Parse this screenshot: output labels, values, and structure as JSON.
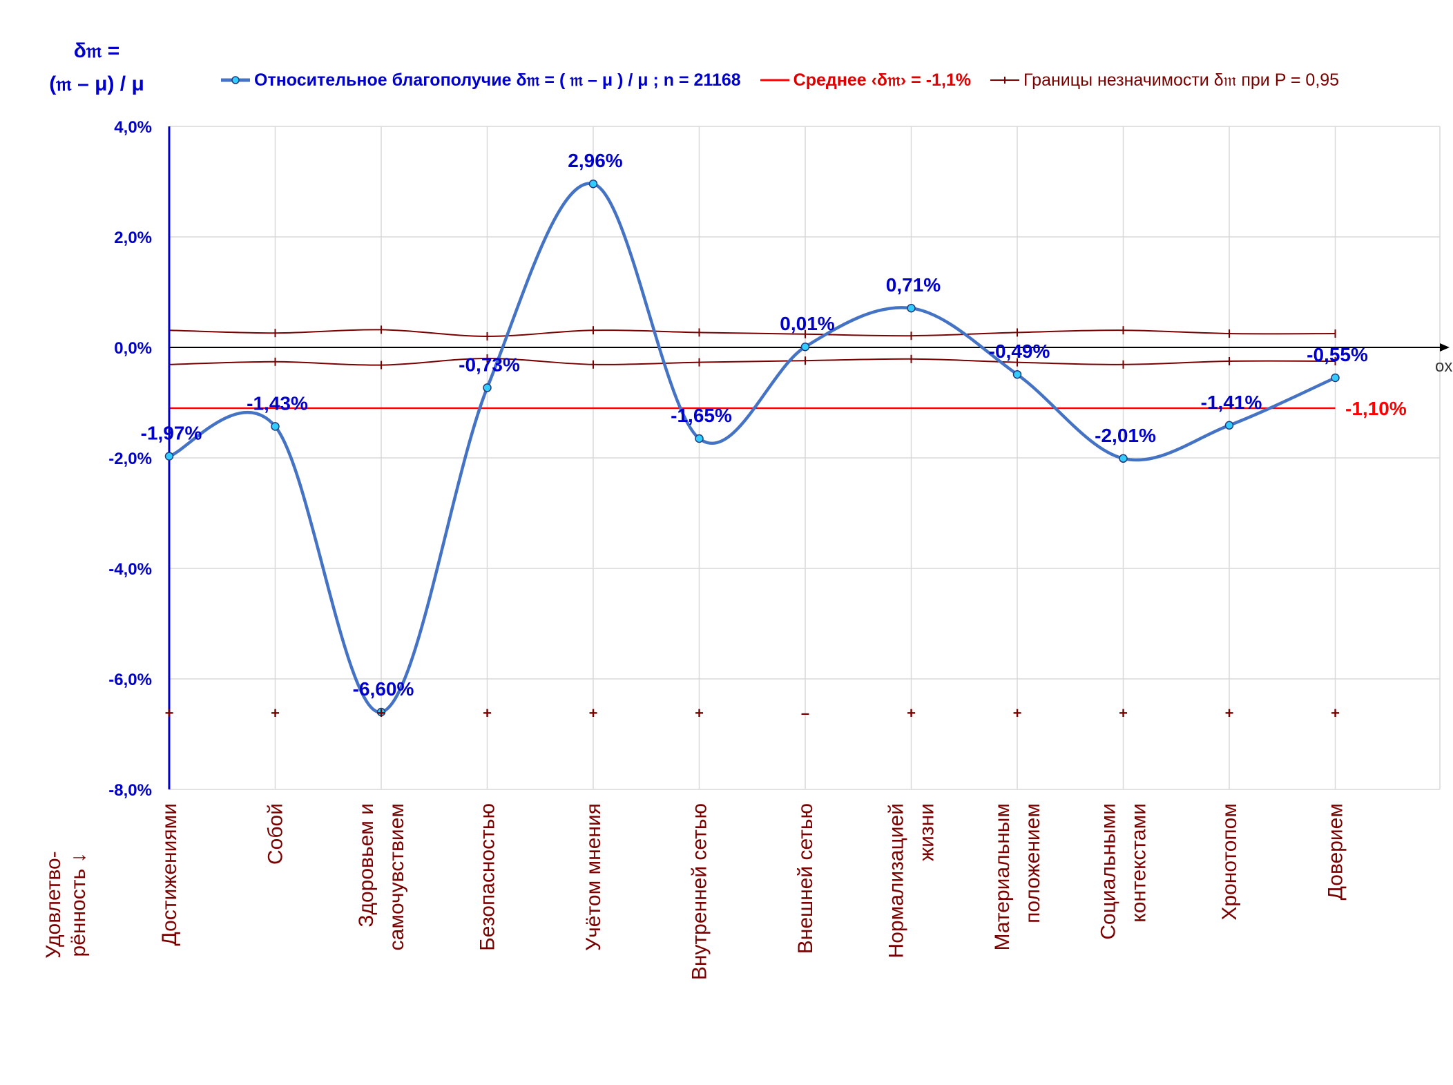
{
  "y_title_line1": "δ𝔪 =",
  "y_title_line2": "(𝔪 – μ) / μ",
  "satisfaction_label": "Удовлетво-рённость ↓",
  "legend": {
    "main": "Относительное благополучие δ𝔪 = ( 𝔪 – μ ) / μ ; n = 21168",
    "mean": "Среднее ‹δ𝔪› = -1,1%",
    "bounds": "Границы незначимости δ𝔪 при P = 0,95"
  },
  "x_axis_name": "ox",
  "mean_label": "-1,10%",
  "colors": {
    "main_series": "#4472c4",
    "marker_fill": "#33ccff",
    "data_label": "#0000cc",
    "mean_line": "#ff0000",
    "bounds": "#7a0000",
    "grid": "#d9d9d9",
    "category_label": "#7a0000"
  },
  "chart_data": {
    "type": "line",
    "categories": [
      [
        "Достижениями"
      ],
      [
        "Собой"
      ],
      [
        "Здоровьем и",
        "самочувствием"
      ],
      [
        "Безопасностью"
      ],
      [
        "Учётом мнения"
      ],
      [
        "Внутренней сетью"
      ],
      [
        "Внешней сетью"
      ],
      [
        "Нормализацией",
        "жизни"
      ],
      [
        "Материальным",
        "положением"
      ],
      [
        "Социальными",
        "контекстами"
      ],
      [
        "Хронотопом"
      ],
      [
        "Доверием"
      ]
    ],
    "series": [
      {
        "name": "Относительное благополучие δ𝔪 = ( 𝔪 – μ ) / μ ; n = 21168",
        "values": [
          -1.97,
          -1.43,
          -6.6,
          -0.73,
          2.96,
          -1.65,
          0.01,
          0.71,
          -0.49,
          -2.01,
          -1.41,
          -0.55
        ],
        "labels": [
          "-1,97%",
          "-1,43%",
          "-6,60%",
          "-0,73%",
          "2,96%",
          "-1,65%",
          "0,01%",
          "0,71%",
          "-0,49%",
          "-2,01%",
          "-1,41%",
          "-0,55%"
        ]
      },
      {
        "name": "Среднее ‹δ𝔪› = -1,1%",
        "value": -1.1
      },
      {
        "name": "Границы незначимости δ𝔪 при P = 0,95",
        "upper": [
          0.31,
          0.26,
          0.32,
          0.2,
          0.31,
          0.27,
          0.24,
          0.21,
          0.27,
          0.31,
          0.25,
          0.25
        ],
        "lower": [
          -0.31,
          -0.26,
          -0.32,
          -0.2,
          -0.31,
          -0.27,
          -0.24,
          -0.21,
          -0.27,
          -0.31,
          -0.25,
          -0.25
        ]
      }
    ],
    "significance_signs": [
      "+",
      "+",
      "+",
      "+",
      "+",
      "+",
      "–",
      "+",
      "+",
      "+",
      "+",
      "+"
    ],
    "ylim": [
      -8,
      4
    ],
    "yticks": [
      4,
      2,
      0,
      -2,
      -4,
      -6,
      -8
    ],
    "ytick_labels": [
      "4,0%",
      "2,0%",
      "0,0%",
      "-2,0%",
      "-4,0%",
      "-6,0%",
      "-8,0%"
    ],
    "grid": true,
    "legend_position": "top"
  }
}
